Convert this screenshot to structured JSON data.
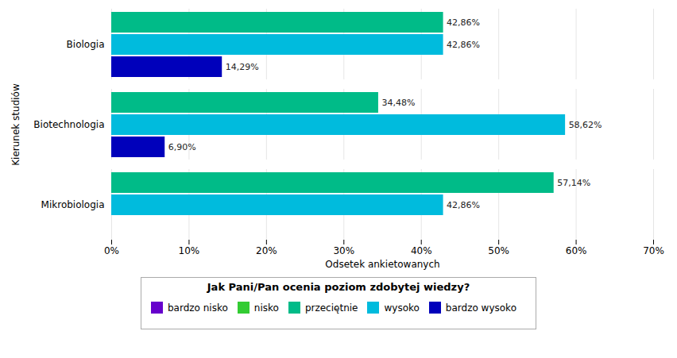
{
  "chart_data": {
    "type": "bar",
    "orientation": "horizontal",
    "categories": [
      "Biologia",
      "Biotechnologia",
      "Mikrobiologia"
    ],
    "series": [
      {
        "name": "bardzo nisko",
        "color": "#6600CC",
        "values": [
          0.0,
          0.0,
          0.0
        ],
        "value_labels": [
          null,
          null,
          null
        ]
      },
      {
        "name": "nisko",
        "color": "#33CC33",
        "values": [
          0.0,
          0.0,
          0.0
        ],
        "value_labels": [
          null,
          null,
          null
        ]
      },
      {
        "name": "przeciętnie",
        "color": "#00BB88",
        "values": [
          42.86,
          34.48,
          57.14
        ],
        "value_labels": [
          "42,86%",
          "34,48%",
          "57,14%"
        ]
      },
      {
        "name": "wysoko",
        "color": "#00BBDD",
        "values": [
          42.86,
          58.62,
          42.86
        ],
        "value_labels": [
          "42,86%",
          "58,62%",
          "42,86%"
        ]
      },
      {
        "name": "bardzo wysoko",
        "color": "#0000BB",
        "values": [
          14.29,
          6.9,
          0.0
        ],
        "value_labels": [
          "14,29%",
          "6,90%",
          null
        ]
      }
    ],
    "xlabel": "Odsetek ankietowanych",
    "ylabel": "Kierunek studiów",
    "legend_title": "Jak Pani/Pan ocenia poziom zdobytej wiedzy?",
    "legend": "bottom",
    "xlim": [
      0,
      70
    ],
    "xticks": [
      {
        "value": 0,
        "label": "0%"
      },
      {
        "value": 10,
        "label": "10%"
      },
      {
        "value": 20,
        "label": "20%"
      },
      {
        "value": 30,
        "label": "30%"
      },
      {
        "value": 40,
        "label": "40%"
      },
      {
        "value": 50,
        "label": "50%"
      },
      {
        "value": 60,
        "label": "60%"
      },
      {
        "value": 70,
        "label": "70%"
      }
    ],
    "grid": true,
    "data_labels": true
  }
}
